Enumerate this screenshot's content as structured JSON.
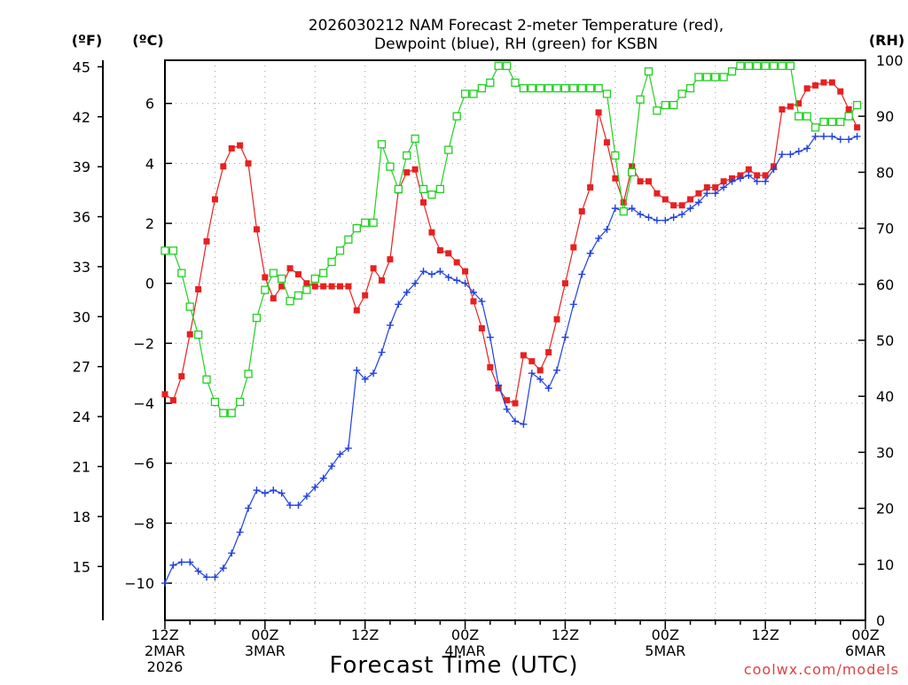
{
  "chart_data": {
    "type": "line",
    "title_lines": [
      "2026030212 NAM Forecast 2-meter Temperature (red),",
      "Dewpoint (blue), RH (green) for KSBN"
    ],
    "xlabel": "Forecast Time (UTC)",
    "credit": "coolwx.com/models",
    "grid": true,
    "x_range_hours": [
      0,
      84
    ],
    "x_ticks": [
      {
        "hour": 0,
        "lines": [
          "12Z",
          "2MAR",
          "2026"
        ]
      },
      {
        "hour": 12,
        "lines": [
          "00Z",
          "3MAR"
        ]
      },
      {
        "hour": 24,
        "lines": [
          "12Z"
        ]
      },
      {
        "hour": 36,
        "lines": [
          "00Z",
          "4MAR"
        ]
      },
      {
        "hour": 48,
        "lines": [
          "12Z"
        ]
      },
      {
        "hour": 60,
        "lines": [
          "00Z",
          "5MAR"
        ]
      },
      {
        "hour": 72,
        "lines": [
          "12Z"
        ]
      },
      {
        "hour": 84,
        "lines": [
          "00Z",
          "6MAR"
        ]
      }
    ],
    "axis_celsius": {
      "unit": "(ºC)",
      "range": [
        -11.24,
        7.44
      ],
      "ticks": [
        -10,
        -8,
        -6,
        -4,
        -2,
        0,
        2,
        4,
        6
      ]
    },
    "axis_fahrenheit": {
      "unit": "(ºF)",
      "ticks": [
        15,
        18,
        21,
        24,
        27,
        30,
        33,
        36,
        39,
        42,
        45
      ]
    },
    "axis_rh": {
      "unit": "(RH)",
      "range": [
        0,
        100
      ],
      "ticks": [
        0,
        10,
        20,
        30,
        40,
        50,
        60,
        70,
        80,
        90,
        100
      ]
    },
    "series": [
      {
        "axis": "celsius",
        "color": "#e82020",
        "marker": "filled-square",
        "values": [
          -3.7,
          -3.9,
          -3.1,
          -1.7,
          -0.2,
          1.4,
          2.8,
          3.9,
          4.5,
          4.6,
          4.0,
          1.8,
          0.2,
          -0.5,
          -0.1,
          0.5,
          0.3,
          0.0,
          -0.1,
          -0.1,
          -0.1,
          -0.1,
          -0.1,
          -0.9,
          -0.4,
          0.5,
          0.1,
          0.8,
          3.1,
          3.7,
          3.8,
          2.7,
          1.7,
          1.1,
          1.0,
          0.7,
          0.4,
          -0.6,
          -1.5,
          -2.8,
          -3.5,
          -3.9,
          -4.0,
          -2.4,
          -2.6,
          -2.9,
          -2.3,
          -1.2,
          0.0,
          1.2,
          2.4,
          3.2,
          5.7,
          4.7,
          3.5,
          2.7,
          3.9,
          3.4,
          3.4,
          3.0,
          2.8,
          2.6,
          2.6,
          2.8,
          3.0,
          3.2,
          3.2,
          3.4,
          3.5,
          3.6,
          3.8,
          3.6,
          3.6,
          3.9,
          5.8,
          5.9,
          6.0,
          6.5,
          6.6,
          6.7,
          6.7,
          6.4,
          5.8,
          5.2
        ]
      },
      {
        "axis": "celsius",
        "color": "#2040e0",
        "marker": "plus",
        "values": [
          -10.0,
          -9.4,
          -9.3,
          -9.3,
          -9.6,
          -9.8,
          -9.8,
          -9.5,
          -9.0,
          -8.3,
          -7.5,
          -6.9,
          -7.0,
          -6.9,
          -7.0,
          -7.4,
          -7.4,
          -7.1,
          -6.8,
          -6.5,
          -6.1,
          -5.7,
          -5.5,
          -2.9,
          -3.2,
          -3.0,
          -2.3,
          -1.4,
          -0.7,
          -0.3,
          0.0,
          0.4,
          0.3,
          0.4,
          0.2,
          0.1,
          0.0,
          -0.3,
          -0.6,
          -1.8,
          -3.4,
          -4.2,
          -4.6,
          -4.7,
          -3.0,
          -3.2,
          -3.5,
          -2.9,
          -1.8,
          -0.7,
          0.3,
          1.0,
          1.5,
          1.8,
          2.5,
          2.4,
          2.5,
          2.3,
          2.2,
          2.1,
          2.1,
          2.2,
          2.3,
          2.5,
          2.7,
          3.0,
          3.0,
          3.2,
          3.4,
          3.5,
          3.6,
          3.4,
          3.4,
          3.8,
          4.3,
          4.3,
          4.4,
          4.5,
          4.9,
          4.9,
          4.9,
          4.8,
          4.8,
          4.9
        ]
      },
      {
        "axis": "rh",
        "color": "#20d020",
        "marker": "open-square",
        "values": [
          66,
          66,
          62,
          56,
          51,
          43,
          39,
          37,
          37,
          39,
          44,
          54,
          59,
          62,
          61,
          57,
          58,
          59,
          61,
          62,
          64,
          66,
          68,
          70,
          71,
          71,
          85,
          81,
          77,
          83,
          86,
          77,
          76,
          77,
          84,
          90,
          94,
          94,
          95,
          96,
          99,
          99,
          96,
          95,
          95,
          95,
          95,
          95,
          95,
          95,
          95,
          95,
          95,
          94,
          83,
          73,
          80,
          93,
          98,
          91,
          92,
          92,
          94,
          95,
          97,
          97,
          97,
          97,
          98,
          99,
          99,
          99,
          99,
          99,
          99,
          99,
          90,
          90,
          88,
          89,
          89,
          89,
          90,
          92
        ]
      }
    ]
  }
}
